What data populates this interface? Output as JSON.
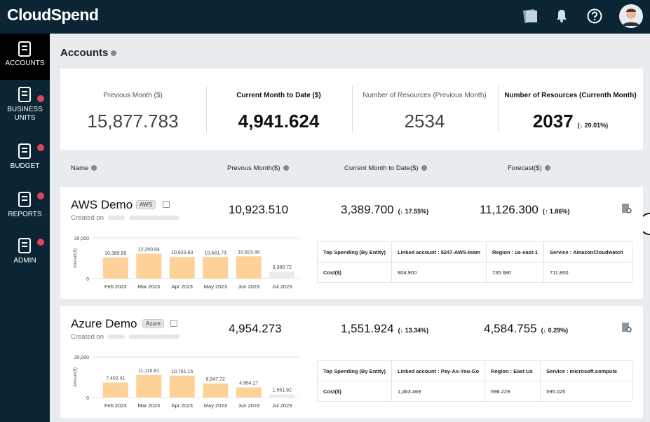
{
  "header": {
    "logo": "CloudSpend"
  },
  "sidebar": [
    {
      "label": "ACCOUNTS",
      "active": true
    },
    {
      "label": "BUSINESS UNITS",
      "active": false
    },
    {
      "label": "BUDGET",
      "active": false
    },
    {
      "label": "REPORTS",
      "active": false
    },
    {
      "label": "ADMIN",
      "active": false
    }
  ],
  "page_title": "Accounts",
  "summary": [
    {
      "label": "Previous Month ($)",
      "value": "15,877.783",
      "strong": false
    },
    {
      "label": "Current Month to Date ($)",
      "value": "4,941.624",
      "strong": true
    },
    {
      "label": "Number of Resources (Previous Month)",
      "value": "2534",
      "strong": false
    },
    {
      "label": "Number of Resources (Currenth Month)",
      "value": "2037",
      "strong": true,
      "change": {
        "label": "(↓ 20.01%)",
        "direction": "down"
      }
    }
  ],
  "columns": [
    "Name",
    "Prevous Month($)",
    "Current Month to Date($)",
    "Forecast($)"
  ],
  "accounts": [
    {
      "name": "AWS Demo",
      "tag": "AWS",
      "created_label": "Created on",
      "previous": "10,923.510",
      "current": "3,389.700",
      "current_change": {
        "label": "(↓ 17.55%)",
        "direction": "down"
      },
      "forecast": "11,126.300",
      "forecast_change": {
        "label": "(↑ 1.86%)",
        "direction": "up"
      },
      "chart": {
        "type": "bar",
        "ylabel": "Amount($)",
        "categories": [
          "Feb 2023",
          "Mar 2023",
          "Apr 2023",
          "May 2023",
          "Jun 2023",
          "Jul 2023"
        ],
        "values": [
          10385.89,
          12260.84,
          10620.83,
          10581.73,
          10923.49,
          3389.72
        ],
        "value_labels": [
          "10,385.89",
          "12,260.84",
          "10,620.83",
          "10,581.73",
          "10,923.49",
          "3,389.72"
        ],
        "colors": [
          "#fdd198",
          "#fdd198",
          "#fdd198",
          "#fdd198",
          "#fdd198",
          "#ebebeb"
        ],
        "ylim": [
          0,
          20000
        ],
        "yticks": [
          0,
          {
            "value": 20000,
            "label": "20,000"
          }
        ]
      },
      "table": {
        "headers": [
          "Top Spending (By Entity)",
          "Linked account : 5247-AWS-team",
          "Region : us-east-1",
          "Service : AmazonCloudwatch"
        ],
        "row": [
          "Cost($)",
          "804.900",
          "735.680",
          "711.800"
        ]
      }
    },
    {
      "name": "Azure Demo",
      "tag": "Azure",
      "created_label": "Created on",
      "previous": "4,954.273",
      "current": "1,551.924",
      "current_change": {
        "label": "(↓ 13.34%)",
        "direction": "down"
      },
      "forecast": "4,584.755",
      "forecast_change": {
        "label": "(↓ 0.29%)",
        "direction": "down"
      },
      "chart": {
        "type": "bar",
        "ylabel": "Amount($)",
        "categories": [
          "Feb 2023",
          "Mar 2023",
          "Apr 2023",
          "May 2023",
          "Jun 2023",
          "Jul 2023"
        ],
        "values": [
          7402.41,
          11116.81,
          10761.15,
          6947.72,
          4954.27,
          1551.92
        ],
        "value_labels": [
          "7,402.41",
          "11,116.81",
          "10,761.15",
          "6,947.72",
          "4,954.27",
          "1,551.92"
        ],
        "colors": [
          "#fdd198",
          "#fdd198",
          "#fdd198",
          "#fdd198",
          "#fdd198",
          "#ebebeb"
        ],
        "ylim": [
          0,
          20000
        ],
        "yticks": [
          0,
          {
            "value": 20000,
            "label": "20,000"
          }
        ]
      },
      "table": {
        "headers": [
          "Top Spending (By Entity)",
          "Linked account : Pay-As-You-Go",
          "Region : East Us",
          "Service : microsoft.compute"
        ],
        "row": [
          "Cost($)",
          "1,463.469",
          "696.229",
          "595.025"
        ]
      }
    }
  ]
}
